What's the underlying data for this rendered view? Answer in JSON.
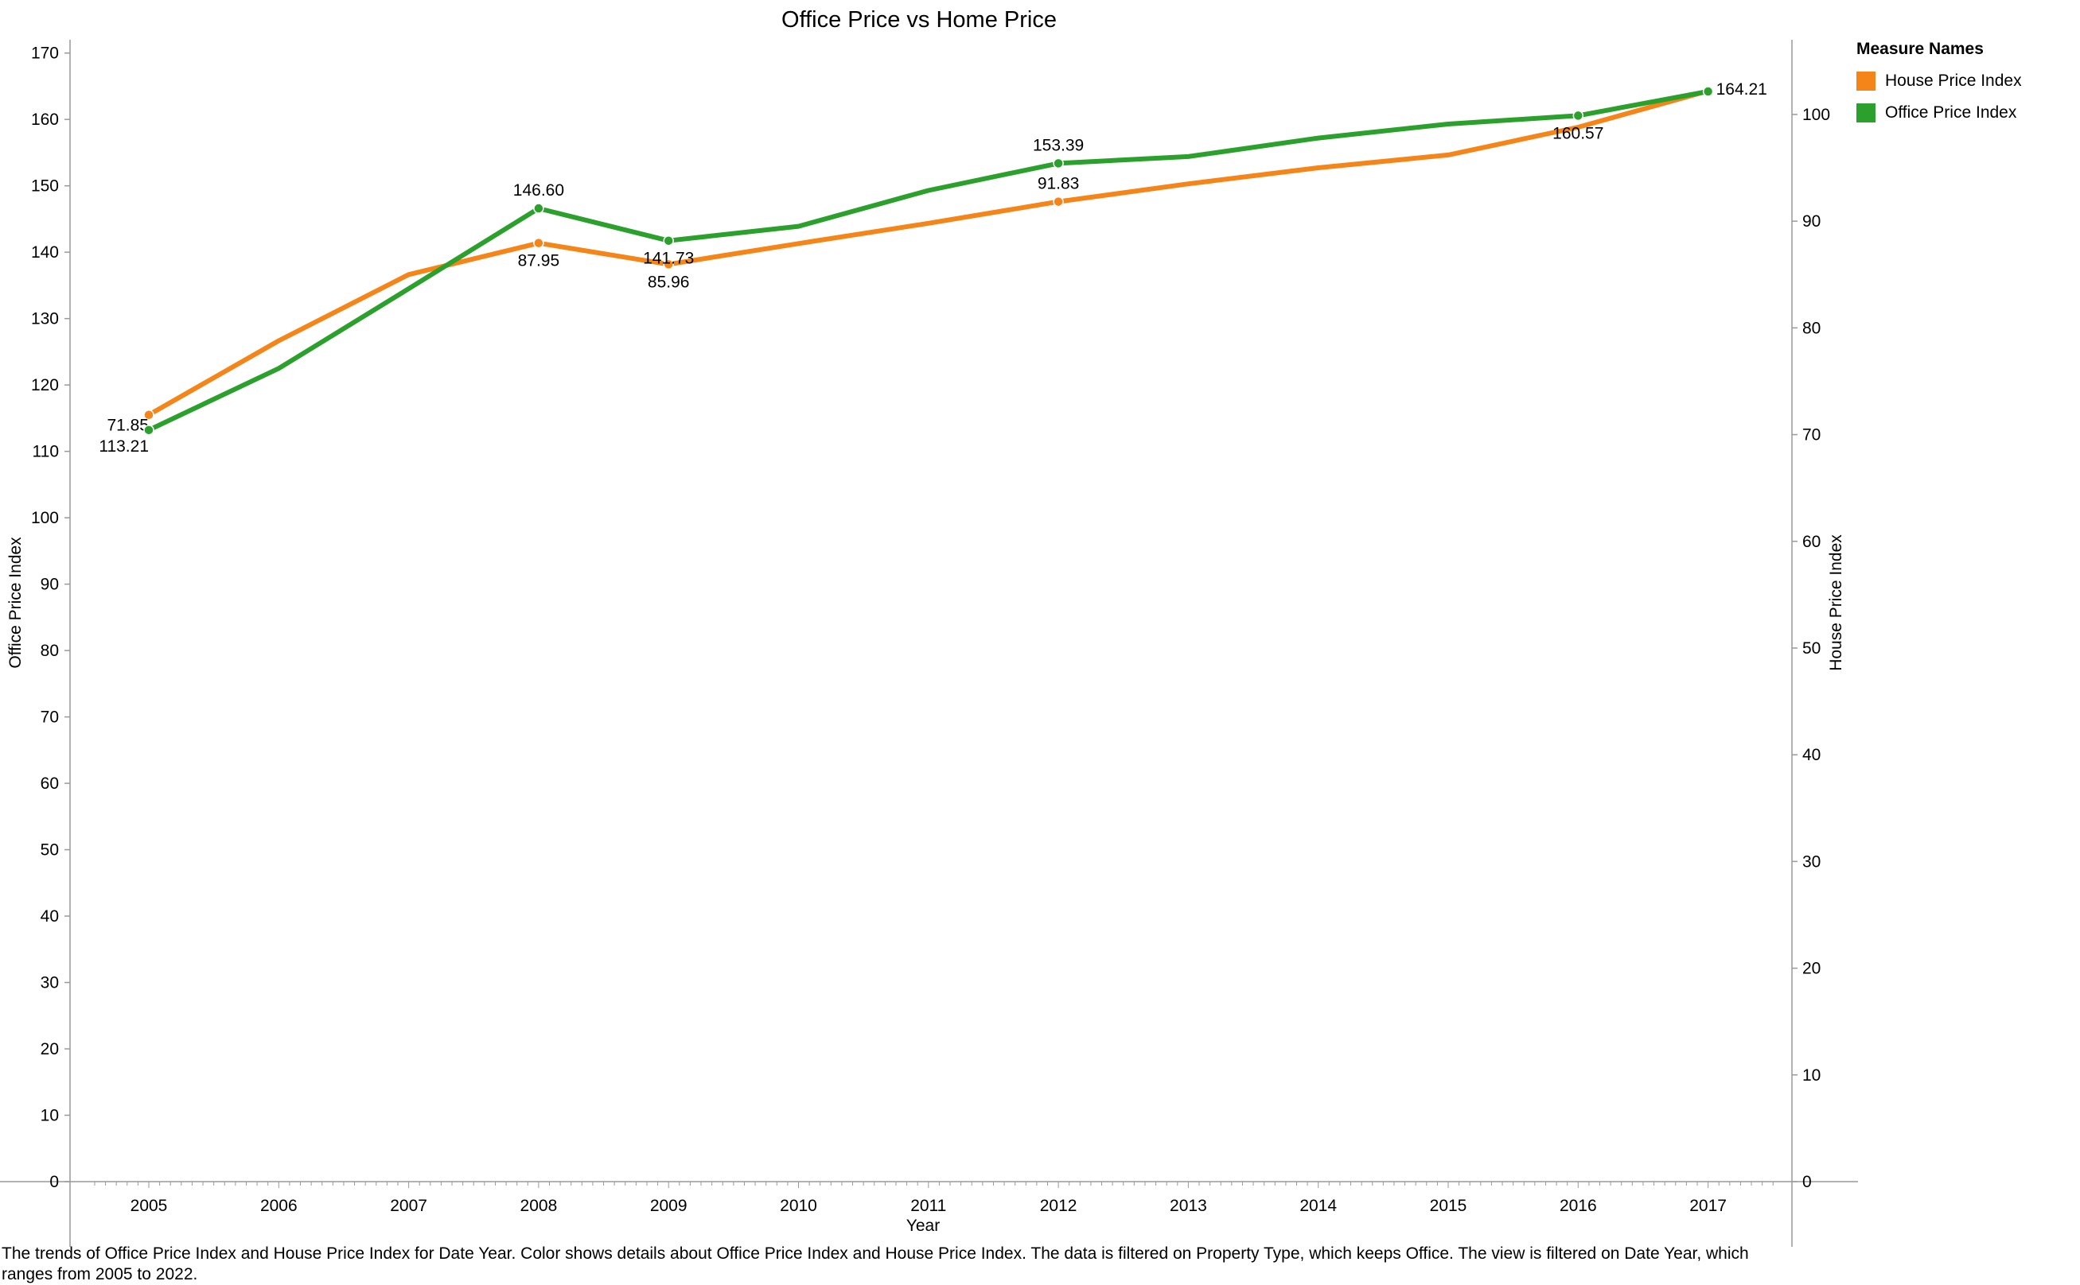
{
  "chart_data": {
    "type": "line",
    "title": "Office Price vs Home Price",
    "xlabel": "Year",
    "ylabel_left": "Office Price Index",
    "ylabel_right": "House Price Index",
    "x": [
      "2005",
      "2006",
      "2007",
      "2008",
      "2009",
      "2010",
      "2011",
      "2012",
      "2013",
      "2014",
      "2015",
      "2016",
      "2017"
    ],
    "left_axis": {
      "range": [
        0,
        172
      ],
      "ticks": [
        "0",
        "10",
        "20",
        "30",
        "40",
        "50",
        "60",
        "70",
        "80",
        "90",
        "100",
        "110",
        "120",
        "130",
        "140",
        "150",
        "160",
        "170"
      ]
    },
    "right_axis": {
      "range": [
        0,
        107
      ],
      "ticks": [
        "0",
        "10",
        "20",
        "30",
        "40",
        "50",
        "60",
        "70",
        "80",
        "90",
        "100"
      ]
    },
    "grid": false,
    "legend_position": "right",
    "legend_title": "Measure Names",
    "series": [
      {
        "name": "House Price Index",
        "axis": "right",
        "color": "#F58518",
        "values": [
          71.85,
          78.8,
          85.0,
          87.95,
          85.96,
          87.9,
          89.8,
          91.83,
          93.5,
          95.0,
          96.2,
          98.8,
          102.2
        ],
        "labels": [
          {
            "index": 0,
            "text": "71.85",
            "pos": "left"
          },
          {
            "index": 3,
            "text": "87.95",
            "pos": "below"
          },
          {
            "index": 4,
            "text": "85.96",
            "pos": "below"
          },
          {
            "index": 7,
            "text": "91.83",
            "pos": "above"
          }
        ]
      },
      {
        "name": "Office Price Index",
        "axis": "left",
        "color": "#2CA02C",
        "values": [
          113.21,
          122.5,
          134.5,
          146.6,
          141.73,
          143.9,
          149.3,
          153.39,
          154.4,
          157.2,
          159.3,
          160.57,
          164.21
        ],
        "labels": [
          {
            "index": 0,
            "text": "113.21",
            "pos": "below-left"
          },
          {
            "index": 3,
            "text": "146.60",
            "pos": "above"
          },
          {
            "index": 4,
            "text": "141.73",
            "pos": "below"
          },
          {
            "index": 7,
            "text": "153.39",
            "pos": "above"
          },
          {
            "index": 11,
            "text": "160.57",
            "pos": "below"
          },
          {
            "index": 12,
            "text": "164.21",
            "pos": "right"
          }
        ]
      }
    ]
  },
  "caption": "The trends of Office Price Index and House Price Index for Date Year.  Color shows details about Office Price Index and House Price Index. The data is filtered on Property Type, which keeps Office. The view is filtered on Date Year, which ranges from 2005 to 2022."
}
